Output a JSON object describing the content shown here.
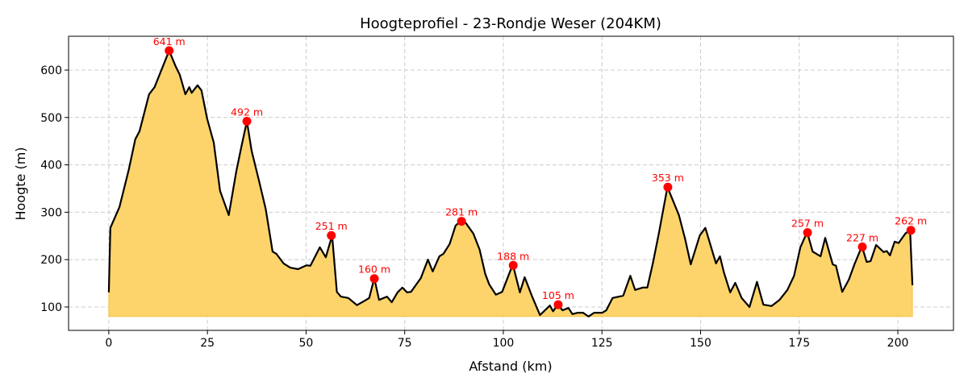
{
  "chart_data": {
    "type": "area",
    "title": "Hoogteprofiel - 23-Rondje Weser (204KM)",
    "xlabel": "Afstand (km)",
    "ylabel": "Hoogte (m)",
    "xlim": [
      -10.2,
      214.1
    ],
    "ylim": [
      50.7,
      671.4
    ],
    "fill_base": 80,
    "grid": true,
    "x_ticks": [
      0,
      25,
      50,
      75,
      100,
      125,
      150,
      175,
      200
    ],
    "y_ticks": [
      100,
      200,
      300,
      400,
      500,
      600
    ],
    "line_color": "#000000",
    "fill_color": "#fcd46b",
    "marker_color": "#ff0000",
    "profile": [
      [
        0,
        131
      ],
      [
        0.4,
        267
      ],
      [
        2.7,
        311
      ],
      [
        5.1,
        391
      ],
      [
        6.7,
        454
      ],
      [
        7.8,
        471
      ],
      [
        10.2,
        549
      ],
      [
        11.6,
        564
      ],
      [
        15.3,
        641
      ],
      [
        17.0,
        607
      ],
      [
        18.0,
        590
      ],
      [
        19.4,
        549
      ],
      [
        20.4,
        564
      ],
      [
        21.0,
        552
      ],
      [
        22.5,
        568
      ],
      [
        23.5,
        557
      ],
      [
        24.9,
        498
      ],
      [
        26.6,
        447
      ],
      [
        28.2,
        345
      ],
      [
        30.4,
        294
      ],
      [
        32.3,
        386
      ],
      [
        33.7,
        442
      ],
      [
        35.0,
        492
      ],
      [
        36.2,
        430
      ],
      [
        38.2,
        362
      ],
      [
        39.8,
        306
      ],
      [
        41.5,
        217
      ],
      [
        42.5,
        212
      ],
      [
        44.3,
        192
      ],
      [
        46.0,
        183
      ],
      [
        48.0,
        180
      ],
      [
        50.1,
        188
      ],
      [
        51.1,
        187
      ],
      [
        53.5,
        226
      ],
      [
        55.0,
        205
      ],
      [
        56.6,
        251
      ],
      [
        57.8,
        132
      ],
      [
        58.8,
        122
      ],
      [
        60.7,
        119
      ],
      [
        62.9,
        104
      ],
      [
        65.0,
        114
      ],
      [
        66.0,
        119
      ],
      [
        67.3,
        161
      ],
      [
        68.5,
        115
      ],
      [
        70.5,
        122
      ],
      [
        71.7,
        110
      ],
      [
        73.2,
        131
      ],
      [
        74.4,
        141
      ],
      [
        75.6,
        131
      ],
      [
        76.6,
        132
      ],
      [
        79.1,
        161
      ],
      [
        80.9,
        200
      ],
      [
        82.1,
        175
      ],
      [
        83.8,
        207
      ],
      [
        84.8,
        212
      ],
      [
        86.4,
        233
      ],
      [
        87.9,
        272
      ],
      [
        89.3,
        282
      ],
      [
        90.5,
        277
      ],
      [
        92.4,
        255
      ],
      [
        94.0,
        221
      ],
      [
        95.4,
        170
      ],
      [
        96.4,
        148
      ],
      [
        98.1,
        126
      ],
      [
        99.7,
        132
      ],
      [
        102.4,
        190
      ],
      [
        104.2,
        131
      ],
      [
        105.4,
        163
      ],
      [
        107.3,
        122
      ],
      [
        109.3,
        83
      ],
      [
        111.8,
        103
      ],
      [
        112.6,
        91
      ],
      [
        113.8,
        105
      ],
      [
        115.0,
        93
      ],
      [
        116.5,
        98
      ],
      [
        117.5,
        85
      ],
      [
        118.9,
        88
      ],
      [
        120.2,
        88
      ],
      [
        121.6,
        80
      ],
      [
        123.0,
        88
      ],
      [
        125.1,
        88
      ],
      [
        126.1,
        93
      ],
      [
        127.7,
        119
      ],
      [
        130.4,
        124
      ],
      [
        132.2,
        166
      ],
      [
        133.4,
        136
      ],
      [
        135.3,
        141
      ],
      [
        136.5,
        141
      ],
      [
        137.9,
        192
      ],
      [
        139.4,
        255
      ],
      [
        141.6,
        353
      ],
      [
        144.5,
        294
      ],
      [
        146.1,
        243
      ],
      [
        147.5,
        190
      ],
      [
        149.8,
        251
      ],
      [
        151.2,
        267
      ],
      [
        153.9,
        192
      ],
      [
        154.9,
        207
      ],
      [
        155.9,
        173
      ],
      [
        157.5,
        131
      ],
      [
        158.8,
        151
      ],
      [
        160.4,
        119
      ],
      [
        162.4,
        100
      ],
      [
        164.3,
        153
      ],
      [
        165.9,
        105
      ],
      [
        168.0,
        102
      ],
      [
        170.0,
        115
      ],
      [
        172.0,
        136
      ],
      [
        173.7,
        166
      ],
      [
        175.3,
        226
      ],
      [
        177.0,
        258
      ],
      [
        178.4,
        217
      ],
      [
        180.4,
        207
      ],
      [
        181.6,
        246
      ],
      [
        183.5,
        190
      ],
      [
        184.3,
        187
      ],
      [
        185.9,
        132
      ],
      [
        187.6,
        158
      ],
      [
        189.0,
        190
      ],
      [
        190.9,
        228
      ],
      [
        192.1,
        195
      ],
      [
        193.1,
        197
      ],
      [
        194.5,
        231
      ],
      [
        196.4,
        216
      ],
      [
        197.2,
        218
      ],
      [
        198.0,
        209
      ],
      [
        199.2,
        238
      ],
      [
        200.2,
        235
      ],
      [
        201.9,
        255
      ],
      [
        203.1,
        263
      ],
      [
        203.7,
        146
      ]
    ],
    "peaks": [
      {
        "x": 15.3,
        "y": 641,
        "label": "641 m"
      },
      {
        "x": 35.0,
        "y": 492,
        "label": "492 m"
      },
      {
        "x": 56.4,
        "y": 251,
        "label": "251 m"
      },
      {
        "x": 67.3,
        "y": 160,
        "label": "160 m"
      },
      {
        "x": 89.4,
        "y": 281,
        "label": "281 m"
      },
      {
        "x": 102.5,
        "y": 188,
        "label": "188 m"
      },
      {
        "x": 113.9,
        "y": 105,
        "label": "105 m"
      },
      {
        "x": 141.7,
        "y": 353,
        "label": "353 m"
      },
      {
        "x": 177.1,
        "y": 257,
        "label": "257 m"
      },
      {
        "x": 191.0,
        "y": 227,
        "label": "227 m"
      },
      {
        "x": 203.3,
        "y": 262,
        "label": "262 m"
      }
    ]
  }
}
